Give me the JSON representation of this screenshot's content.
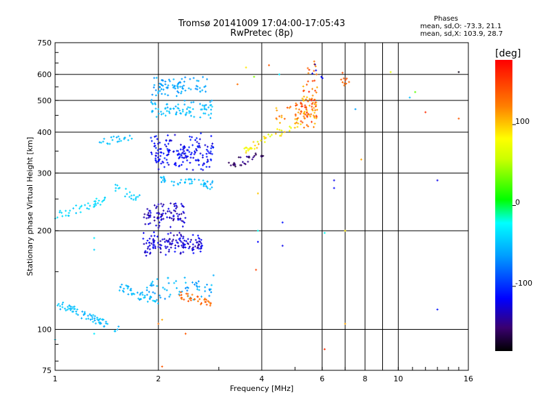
{
  "header": {
    "title_line1": "Tromsø 20141009 17:04:00-17:05:43",
    "title_line2": "RwPretec (8p)"
  },
  "phases_box": {
    "title": "Phases",
    "line_o": "mean, sd,O: -73.3, 21.1",
    "line_x": "mean, sd,X: 103.9, 28.7"
  },
  "colorbar": {
    "unit_label": "[deg]",
    "ticks": [
      {
        "value": 100,
        "label": "100"
      },
      {
        "value": 0,
        "label": "0"
      },
      {
        "value": -100,
        "label": "-100"
      }
    ],
    "range": [
      -180,
      180
    ],
    "palette": "rainbow"
  },
  "chart_data": {
    "type": "scatter",
    "title": "Tromsø 20141009 17:04:00-17:05:43",
    "subtitle": "RwPretec (8p)",
    "xlabel": "Frequency [MHz]",
    "ylabel": "Stationary phase Virtual Height [km]",
    "x_scale": "log",
    "y_scale": "log",
    "xlim": [
      1,
      16
    ],
    "ylim": [
      75,
      750
    ],
    "x_ticks": [
      {
        "value": 1,
        "label": "1"
      },
      {
        "value": 2,
        "label": "2"
      },
      {
        "value": 4,
        "label": "4"
      },
      {
        "value": 6,
        "label": "6"
      },
      {
        "value": 8,
        "label": "8"
      },
      {
        "value": 10,
        "label": "10"
      },
      {
        "value": 16,
        "label": "16"
      }
    ],
    "x_grid": [
      2,
      4,
      6,
      7,
      8,
      9,
      10
    ],
    "y_ticks": [
      {
        "value": 75,
        "label": "75"
      },
      {
        "value": 100,
        "label": "100"
      },
      {
        "value": 200,
        "label": "200"
      },
      {
        "value": 300,
        "label": "300"
      },
      {
        "value": 400,
        "label": "400"
      },
      {
        "value": 500,
        "label": "500"
      },
      {
        "value": 600,
        "label": "600"
      },
      {
        "value": 750,
        "label": "750"
      }
    ],
    "y_grid": [
      100,
      200,
      300,
      400,
      500,
      600
    ],
    "color_by": "phase_deg",
    "clusters": [
      {
        "f": [
          1.0,
          1.55
        ],
        "h": [
          120,
          100
        ],
        "phase": [
          -60,
          -40
        ],
        "shape": "curve",
        "n": 70
      },
      {
        "f": [
          1.0,
          1.4
        ],
        "h": [
          220,
          250
        ],
        "phase": [
          -45,
          -30
        ],
        "shape": "curve",
        "n": 40
      },
      {
        "f": [
          1.35,
          1.7
        ],
        "h": [
          375,
          380
        ],
        "phase": [
          -55,
          -40
        ],
        "shape": "curve",
        "n": 22
      },
      {
        "f": [
          1.45,
          1.75
        ],
        "h": [
          275,
          250
        ],
        "phase": [
          -50,
          -35
        ],
        "shape": "curve",
        "n": 20
      },
      {
        "f": [
          1.55,
          2.0
        ],
        "h": [
          135,
          120
        ],
        "phase": [
          -60,
          -40
        ],
        "shape": "curve",
        "n": 45
      },
      {
        "f": [
          1.8,
          2.7
        ],
        "h": [
          190,
          175
        ],
        "phase": [
          -140,
          -110
        ],
        "shape": "band",
        "n": 140
      },
      {
        "f": [
          1.8,
          2.4
        ],
        "h": [
          235,
          210
        ],
        "phase": [
          -145,
          -115
        ],
        "shape": "band",
        "n": 90
      },
      {
        "f": [
          1.9,
          2.9
        ],
        "h": [
          380,
          320
        ],
        "phase": [
          -130,
          -100
        ],
        "shape": "band",
        "n": 170
      },
      {
        "f": [
          2.0,
          2.9
        ],
        "h": [
          285,
          275
        ],
        "phase": [
          -60,
          -40
        ],
        "shape": "curve",
        "n": 50
      },
      {
        "f": [
          1.9,
          2.9
        ],
        "h": [
          480,
          460
        ],
        "phase": [
          -60,
          -40
        ],
        "shape": "band",
        "n": 80
      },
      {
        "f": [
          1.9,
          2.8
        ],
        "h": [
          570,
          540
        ],
        "phase": [
          -70,
          -50
        ],
        "shape": "band",
        "n": 80
      },
      {
        "f": [
          1.85,
          2.9
        ],
        "h": [
          140,
          128
        ],
        "phase": [
          -70,
          -45
        ],
        "shape": "band",
        "n": 60
      },
      {
        "f": [
          2.3,
          2.85
        ],
        "h": [
          127,
          120
        ],
        "phase": [
          120,
          145
        ],
        "shape": "curve",
        "n": 35
      },
      {
        "f": [
          3.2,
          4.1
        ],
        "h": [
          320,
          340
        ],
        "phase": [
          -170,
          -140
        ],
        "shape": "curve",
        "n": 30
      },
      {
        "f": [
          3.5,
          5.2
        ],
        "h": [
          350,
          430
        ],
        "phase": [
          60,
          110
        ],
        "shape": "curve",
        "n": 45
      },
      {
        "f": [
          4.4,
          5.5
        ],
        "h": [
          440,
          470
        ],
        "phase": [
          100,
          150
        ],
        "shape": "band",
        "n": 30
      },
      {
        "f": [
          5.2,
          5.8
        ],
        "h": [
          420,
          540
        ],
        "phase": [
          100,
          170
        ],
        "shape": "band",
        "n": 75
      },
      {
        "f": [
          5.4,
          5.8
        ],
        "h": [
          560,
          650
        ],
        "phase": [
          120,
          160
        ],
        "shape": "band",
        "n": 12
      },
      {
        "f": [
          6.8,
          7.2
        ],
        "h": [
          560,
          620
        ],
        "phase": [
          120,
          150
        ],
        "shape": "band",
        "n": 10
      },
      {
        "f": [
          5.6,
          6.1
        ],
        "h": [
          600,
          620
        ],
        "phase": [
          -140,
          -110
        ],
        "shape": "band",
        "n": 5
      }
    ],
    "scattered_points": [
      {
        "f": 3.4,
        "h": 560,
        "phase": 130
      },
      {
        "f": 3.6,
        "h": 630,
        "phase": 90
      },
      {
        "f": 3.8,
        "h": 590,
        "phase": 40
      },
      {
        "f": 4.2,
        "h": 640,
        "phase": 140
      },
      {
        "f": 4.5,
        "h": 600,
        "phase": -30
      },
      {
        "f": 3.9,
        "h": 260,
        "phase": 100
      },
      {
        "f": 4.6,
        "h": 212,
        "phase": -110
      },
      {
        "f": 4.6,
        "h": 180,
        "phase": -120
      },
      {
        "f": 3.9,
        "h": 185,
        "phase": -115
      },
      {
        "f": 3.9,
        "h": 200,
        "phase": -20
      },
      {
        "f": 3.85,
        "h": 152,
        "phase": 150
      },
      {
        "f": 6.1,
        "h": 197,
        "phase": -20
      },
      {
        "f": 7.0,
        "h": 200,
        "phase": 90
      },
      {
        "f": 6.1,
        "h": 87,
        "phase": 160
      },
      {
        "f": 7.0,
        "h": 104,
        "phase": 110
      },
      {
        "f": 6.5,
        "h": 285,
        "phase": -120
      },
      {
        "f": 6.5,
        "h": 270,
        "phase": -115
      },
      {
        "f": 7.5,
        "h": 470,
        "phase": -60
      },
      {
        "f": 7.8,
        "h": 330,
        "phase": 110
      },
      {
        "f": 9.5,
        "h": 610,
        "phase": 70
      },
      {
        "f": 10.8,
        "h": 510,
        "phase": -50
      },
      {
        "f": 11.2,
        "h": 530,
        "phase": 30
      },
      {
        "f": 12.0,
        "h": 460,
        "phase": 160
      },
      {
        "f": 13.0,
        "h": 285,
        "phase": -120
      },
      {
        "f": 13.0,
        "h": 115,
        "phase": -110
      },
      {
        "f": 15.0,
        "h": 610,
        "phase": -175
      },
      {
        "f": 15.0,
        "h": 440,
        "phase": 140
      },
      {
        "f": 2.05,
        "h": 107,
        "phase": 110
      },
      {
        "f": 2.0,
        "h": 104,
        "phase": 130
      },
      {
        "f": 2.4,
        "h": 97,
        "phase": 140
      },
      {
        "f": 2.05,
        "h": 77,
        "phase": 140
      },
      {
        "f": 1.3,
        "h": 97,
        "phase": -30
      },
      {
        "f": 1.0,
        "h": 93,
        "phase": -40
      },
      {
        "f": 1.3,
        "h": 190,
        "phase": -30
      },
      {
        "f": 1.3,
        "h": 175,
        "phase": -40
      }
    ]
  }
}
